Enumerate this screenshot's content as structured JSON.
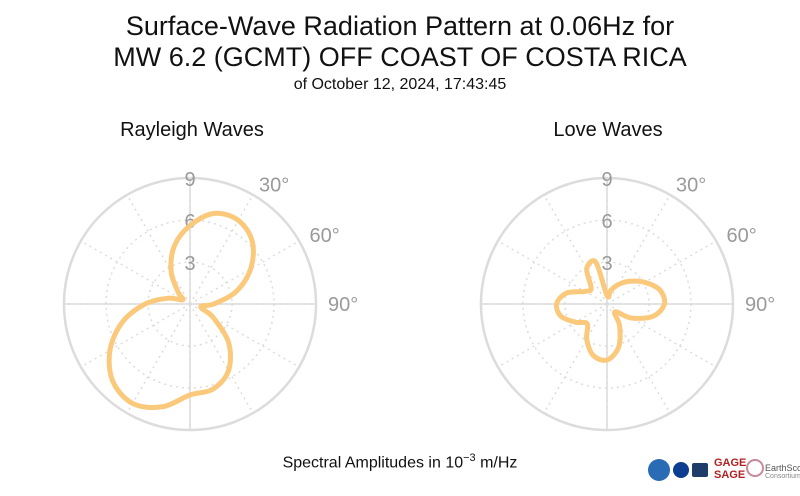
{
  "title_line1": "Surface-Wave Radiation Pattern at 0.06Hz for",
  "title_line2": "MW 6.2 (GCMT) OFF COAST OF COSTA RICA",
  "subtitle": "of October 12, 2024, 17:43:45",
  "footer_prefix": "Spectral Amplitudes in 10",
  "footer_exponent": "−3",
  "footer_unit": " m/Hz",
  "logos": {
    "gage": "GAGE",
    "sage": "SAGE",
    "earthscope": "EarthScope",
    "consortium": "Consortium"
  },
  "colors": {
    "curve": "#fbc97c",
    "grid": "#dcdcdc",
    "label": "#9a9a9a"
  },
  "chart_data": [
    {
      "type": "polar-line",
      "title": "Rayleigh Waves",
      "r_ticks": [
        3,
        6,
        9
      ],
      "r_max": 9,
      "angle_ticks_deg": [
        30,
        60,
        90
      ],
      "angle_tick_labels": [
        "30°",
        "60°",
        "90°"
      ],
      "theta_deg": [
        0,
        15,
        30,
        45,
        60,
        75,
        90,
        105,
        120,
        135,
        150,
        165,
        180,
        195,
        210,
        225,
        240,
        255,
        270,
        285,
        300,
        315,
        330,
        345
      ],
      "r": [
        5.6,
        6.7,
        6.9,
        6.3,
        5.0,
        3.4,
        1.7,
        0.8,
        1.9,
        3.9,
        5.5,
        6.3,
        6.5,
        7.6,
        8.2,
        7.8,
        6.6,
        5.0,
        3.2,
        1.6,
        0.6,
        1.2,
        2.7,
        4.3
      ]
    },
    {
      "type": "polar-line",
      "title": "Love Waves",
      "r_ticks": [
        3,
        6,
        9
      ],
      "r_max": 9,
      "angle_ticks_deg": [
        30,
        60,
        90
      ],
      "angle_tick_labels": [
        "30°",
        "60°",
        "90°"
      ],
      "theta_deg": [
        0,
        15,
        30,
        45,
        60,
        75,
        90,
        105,
        120,
        135,
        150,
        165,
        180,
        195,
        210,
        225,
        240,
        255,
        270,
        285,
        300,
        315,
        330,
        345
      ],
      "r": [
        0.6,
        1.0,
        1.6,
        2.3,
        3.1,
        3.9,
        4.1,
        3.4,
        2.0,
        0.8,
        1.8,
        3.2,
        4.0,
        3.8,
        2.9,
        2.0,
        2.6,
        3.4,
        3.6,
        3.0,
        1.8,
        1.6,
        2.9,
        3.1
      ]
    }
  ]
}
